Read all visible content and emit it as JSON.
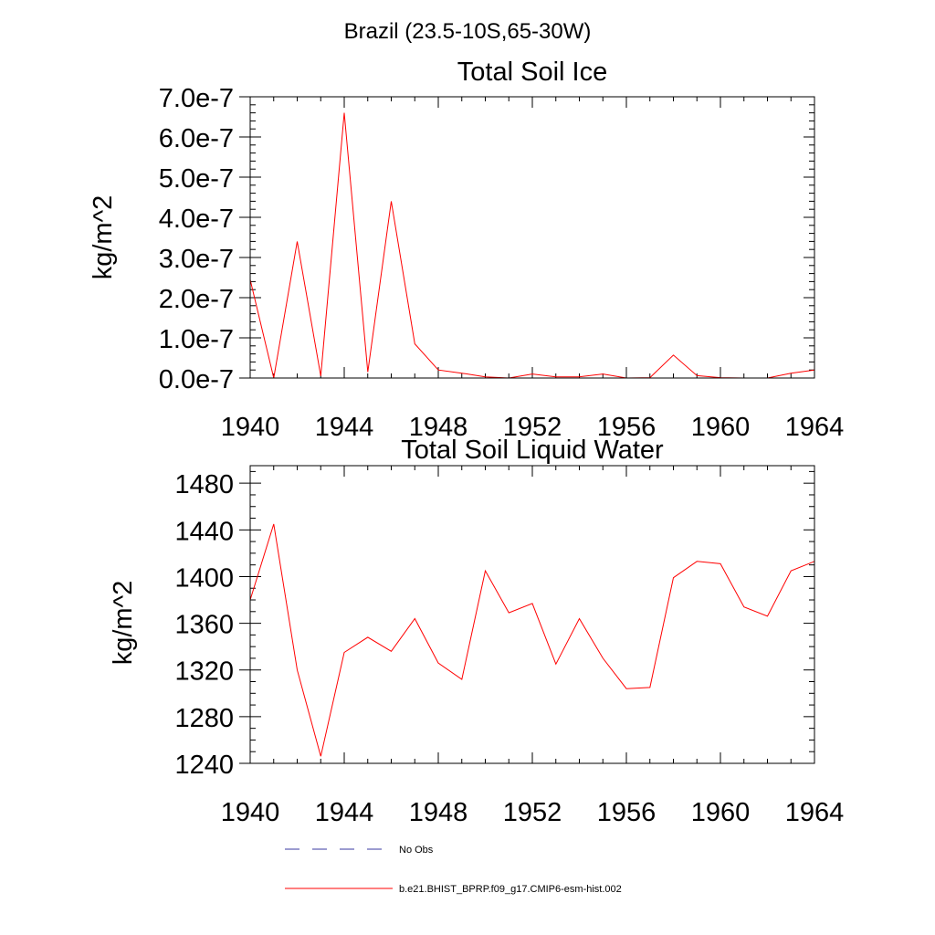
{
  "figure": {
    "title": "Brazil (23.5-10S,65-30W)"
  },
  "chart_data": [
    {
      "type": "line",
      "title": "Total Soil Ice",
      "xlabel": "",
      "ylabel": "kg/m^2",
      "xlim": [
        1940,
        1964
      ],
      "ylim": [
        0,
        7e-07
      ],
      "x_ticks": [
        "1940",
        "1944",
        "1948",
        "1952",
        "1956",
        "1960",
        "1964"
      ],
      "y_ticks": [
        "0.0e-7",
        "1.0e-7",
        "2.0e-7",
        "3.0e-7",
        "4.0e-7",
        "5.0e-7",
        "6.0e-7",
        "7.0e-7"
      ],
      "grid": false,
      "series": [
        {
          "name": "b.e21.BHIST_BPRP.f09_g17.CMIP6-esm-hist.002",
          "color": "#ff0000",
          "x": [
            1940,
            1941,
            1942,
            1943,
            1944,
            1945,
            1946,
            1947,
            1948,
            1949,
            1950,
            1951,
            1952,
            1953,
            1954,
            1955,
            1956,
            1957,
            1958,
            1959,
            1960,
            1961,
            1962,
            1963,
            1964
          ],
          "values": [
            2.45e-07,
            0.0,
            3.4e-07,
            5e-09,
            6.6e-07,
            1.5e-08,
            4.4e-07,
            8.5e-08,
            2e-08,
            1.2e-08,
            3e-09,
            0.0,
            1e-08,
            3e-09,
            3e-09,
            1e-08,
            0.0,
            1e-09,
            5.7e-08,
            6e-09,
            1e-09,
            0.0,
            0.0,
            1.2e-08,
            2e-08
          ]
        }
      ]
    },
    {
      "type": "line",
      "title": "Total Soil Liquid Water",
      "xlabel": "",
      "ylabel": "kg/m^2",
      "xlim": [
        1940,
        1964
      ],
      "ylim": [
        1240,
        1495
      ],
      "x_ticks": [
        "1940",
        "1944",
        "1948",
        "1952",
        "1956",
        "1960",
        "1964"
      ],
      "y_ticks": [
        "1240",
        "1280",
        "1320",
        "1360",
        "1400",
        "1440",
        "1480"
      ],
      "grid": false,
      "series": [
        {
          "name": "b.e21.BHIST_BPRP.f09_g17.CMIP6-esm-hist.002",
          "color": "#ff0000",
          "x": [
            1940,
            1941,
            1942,
            1943,
            1944,
            1945,
            1946,
            1947,
            1948,
            1949,
            1950,
            1951,
            1952,
            1953,
            1954,
            1955,
            1956,
            1957,
            1958,
            1959,
            1960,
            1961,
            1962,
            1963,
            1964
          ],
          "values": [
            1380,
            1445,
            1320,
            1246,
            1335,
            1348,
            1336,
            1364,
            1326,
            1312,
            1405,
            1369,
            1377,
            1325,
            1364,
            1330,
            1304,
            1305,
            1399,
            1413,
            1411,
            1374,
            1366,
            1405,
            1413
          ]
        }
      ]
    }
  ],
  "legend": {
    "items": [
      {
        "label": "No Obs",
        "color": "#3a3aa0",
        "style": "dashed"
      },
      {
        "label": "b.e21.BHIST_BPRP.f09_g17.CMIP6-esm-hist.002",
        "color": "#ff0000",
        "style": "solid"
      }
    ]
  }
}
